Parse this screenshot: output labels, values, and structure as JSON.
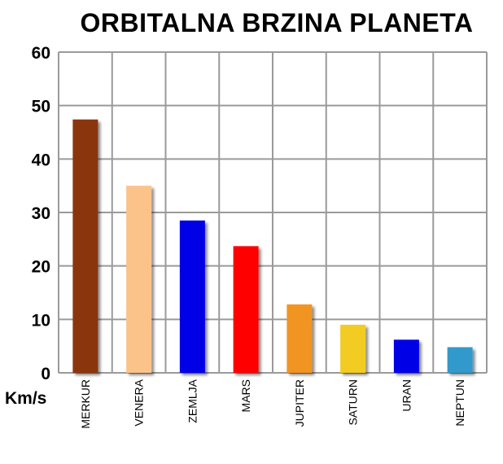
{
  "chart_data": {
    "type": "bar",
    "title": "ORBITALNA BRZINA PLANETA",
    "ylabel": "Km/s",
    "xlabel": "",
    "ylim": [
      0,
      60
    ],
    "yticks": [
      0,
      10,
      20,
      30,
      40,
      50,
      60
    ],
    "grid": true,
    "categories": [
      "MERKUR",
      "VENERA",
      "ZEMLJA",
      "MARS",
      "JUPITER",
      "SATURN",
      "URAN",
      "NEPTUN"
    ],
    "values": [
      47.4,
      35.0,
      28.5,
      23.7,
      12.8,
      9.0,
      6.2,
      4.8
    ],
    "colors": [
      "#8B3408",
      "#FBC38A",
      "#0000E6",
      "#FF0000",
      "#F29420",
      "#F2CC22",
      "#0000E6",
      "#3399CC"
    ]
  }
}
